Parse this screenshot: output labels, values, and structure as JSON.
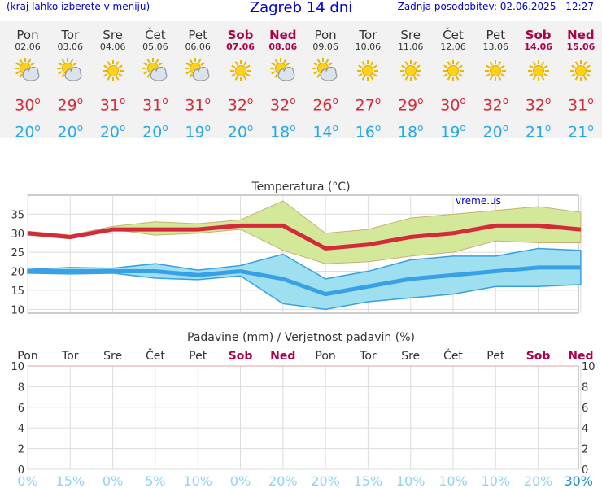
{
  "header": {
    "menu_hint": "(kraj lahko izberete v meniju)",
    "title": "Zagreb 14 dni",
    "updated": "Zadnja posodobitev: 02.06.2025 - 12:27"
  },
  "colors": {
    "max": "#d42a3a",
    "min": "#2aa8e6",
    "weekend": "#b0004a",
    "band_max": "#d4e89a",
    "band_min": "#9fe0f0"
  },
  "days": [
    {
      "name": "Pon",
      "date": "02.06",
      "weekend": false,
      "icon": "partly-cloudy-icon",
      "max": "30",
      "min": "20"
    },
    {
      "name": "Tor",
      "date": "03.06",
      "weekend": false,
      "icon": "partly-cloudy-icon",
      "max": "29",
      "min": "20"
    },
    {
      "name": "Sre",
      "date": "04.06",
      "weekend": false,
      "icon": "sun-icon",
      "max": "31",
      "min": "20"
    },
    {
      "name": "Čet",
      "date": "05.06",
      "weekend": false,
      "icon": "partly-cloudy-icon",
      "max": "31",
      "min": "20"
    },
    {
      "name": "Pet",
      "date": "06.06",
      "weekend": false,
      "icon": "partly-cloudy-icon",
      "max": "31",
      "min": "19"
    },
    {
      "name": "Sob",
      "date": "07.06",
      "weekend": true,
      "icon": "sun-icon",
      "max": "32",
      "min": "20"
    },
    {
      "name": "Ned",
      "date": "08.06",
      "weekend": true,
      "icon": "partly-cloudy-icon",
      "max": "32",
      "min": "18"
    },
    {
      "name": "Pon",
      "date": "09.06",
      "weekend": false,
      "icon": "partly-cloudy-icon",
      "max": "26",
      "min": "14"
    },
    {
      "name": "Tor",
      "date": "10.06",
      "weekend": false,
      "icon": "sun-icon",
      "max": "27",
      "min": "16"
    },
    {
      "name": "Sre",
      "date": "11.06",
      "weekend": false,
      "icon": "sun-icon",
      "max": "29",
      "min": "18"
    },
    {
      "name": "Čet",
      "date": "12.06",
      "weekend": false,
      "icon": "sun-icon",
      "max": "30",
      "min": "19"
    },
    {
      "name": "Pet",
      "date": "13.06",
      "weekend": false,
      "icon": "sun-icon",
      "max": "32",
      "min": "20"
    },
    {
      "name": "Sob",
      "date": "14.06",
      "weekend": true,
      "icon": "sun-icon",
      "max": "32",
      "min": "21"
    },
    {
      "name": "Ned",
      "date": "15.06",
      "weekend": true,
      "icon": "sun-icon",
      "max": "31",
      "min": "21"
    }
  ],
  "chart_data": [
    {
      "type": "line",
      "title": "Temperatura (°C)",
      "watermark": "vreme.us",
      "ylim": [
        9,
        40
      ],
      "yticks": [
        10,
        15,
        20,
        25,
        30,
        35
      ],
      "grid": true,
      "x": [
        "02.06",
        "03.06",
        "04.06",
        "05.06",
        "06.06",
        "07.06",
        "08.06",
        "09.06",
        "10.06",
        "11.06",
        "12.06",
        "13.06",
        "14.06",
        "15.06"
      ],
      "series": [
        {
          "role": "max",
          "values": [
            30,
            29,
            31,
            31,
            31,
            32,
            32,
            26,
            27,
            29,
            30,
            32,
            32,
            31
          ]
        },
        {
          "role": "max_high",
          "values": [
            30.5,
            29.5,
            31.8,
            33,
            32.5,
            33.5,
            38.5,
            30,
            31,
            34,
            35,
            36,
            37,
            35.5
          ]
        },
        {
          "role": "max_low",
          "values": [
            29.5,
            28.5,
            31,
            29.5,
            30,
            31,
            25.5,
            22,
            22.5,
            24,
            25,
            28,
            27.5,
            27.5
          ]
        },
        {
          "role": "min",
          "values": [
            20,
            20,
            20,
            20,
            19,
            20,
            18,
            14,
            16,
            18,
            19,
            20,
            21,
            21
          ]
        },
        {
          "role": "min_high",
          "values": [
            20.5,
            21,
            20.8,
            22,
            20.3,
            21.5,
            24.5,
            18,
            20,
            23,
            24,
            24,
            26,
            25.5
          ]
        },
        {
          "role": "min_low",
          "values": [
            19.5,
            19.3,
            19.5,
            18.2,
            17.8,
            18.8,
            11.5,
            10,
            12,
            13,
            14,
            16,
            16,
            16.5
          ]
        }
      ]
    },
    {
      "type": "bar",
      "title": "Padavine (mm) / Verjetnost padavin (%)",
      "categories": [
        "Pon",
        "Tor",
        "Sre",
        "Čet",
        "Pet",
        "Sob",
        "Ned",
        "Pon",
        "Tor",
        "Sre",
        "Čet",
        "Pet",
        "Sob",
        "Ned"
      ],
      "weekend": [
        false,
        false,
        false,
        false,
        false,
        true,
        true,
        false,
        false,
        false,
        false,
        false,
        true,
        true
      ],
      "values": [
        0,
        0,
        0,
        0,
        0,
        0,
        0,
        0,
        0,
        0,
        0,
        0,
        0,
        0
      ],
      "ylim": [
        0,
        10
      ],
      "yticks": [
        0,
        2,
        4,
        6,
        8,
        10
      ],
      "probability": [
        "0%",
        "15%",
        "0%",
        "5%",
        "10%",
        "0%",
        "20%",
        "20%",
        "15%",
        "10%",
        "10%",
        "10%",
        "20%",
        "30%"
      ]
    }
  ]
}
